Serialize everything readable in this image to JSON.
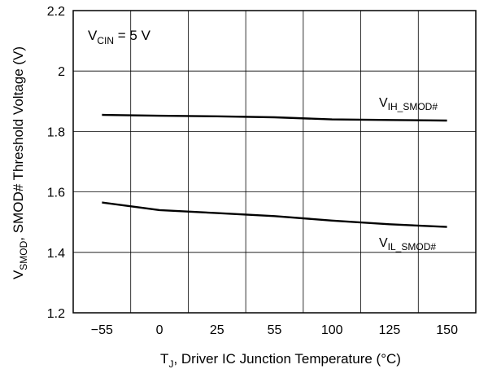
{
  "chart_data": {
    "type": "line",
    "xlabel": {
      "main": "T",
      "sub": "J",
      "rest": ", Driver IC Junction Temperature (°C)"
    },
    "ylabel": {
      "main": "V",
      "sub": "SMOD",
      "rest": ", SMOD# Threshold Voltage (V)"
    },
    "annotation": {
      "main": "V",
      "sub": "CIN",
      "rest": " = 5 V"
    },
    "categories": [
      "−55",
      "0",
      "25",
      "55",
      "100",
      "125",
      "150"
    ],
    "ylim": [
      1.2,
      2.2
    ],
    "y_ticks": [
      "1.2",
      "1.4",
      "1.6",
      "1.8",
      "2",
      "2.2"
    ],
    "y_tick_values": [
      1.2,
      1.4,
      1.6,
      1.8,
      2.0,
      2.2
    ],
    "grid": true,
    "series": [
      {
        "name": {
          "main": "V",
          "sub": "IH_SMOD#"
        },
        "points": [
          [
            0,
            1.855
          ],
          [
            1,
            1.852
          ],
          [
            2,
            1.85
          ],
          [
            3,
            1.847
          ],
          [
            4,
            1.84
          ],
          [
            5,
            1.838
          ],
          [
            6,
            1.836
          ]
        ]
      },
      {
        "name": {
          "main": "V",
          "sub": "IL_SMOD#"
        },
        "points": [
          [
            0,
            1.565
          ],
          [
            1,
            1.54
          ],
          [
            2,
            1.53
          ],
          [
            3,
            1.52
          ],
          [
            4,
            1.505
          ],
          [
            5,
            1.493
          ],
          [
            6,
            1.484
          ]
        ]
      }
    ]
  }
}
